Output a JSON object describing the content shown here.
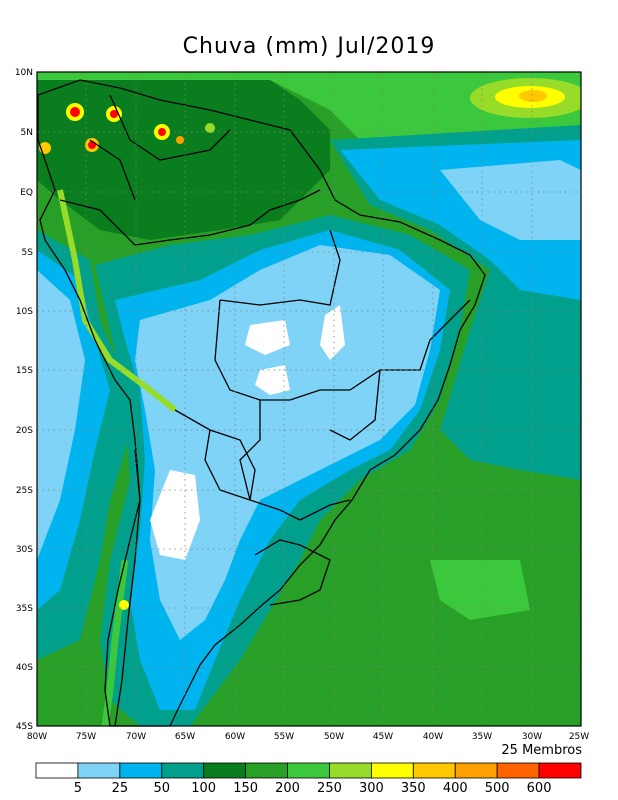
{
  "title": "Chuva (mm) Jul/2019",
  "members_label": "25 Membros",
  "lat_ticks": [
    "10N",
    "5N",
    "EQ",
    "5S",
    "10S",
    "15S",
    "20S",
    "25S",
    "30S",
    "35S",
    "40S",
    "45S"
  ],
  "lon_ticks": [
    "80W",
    "75W",
    "70W",
    "65W",
    "60W",
    "55W",
    "50W",
    "45W",
    "40W",
    "35W",
    "30W",
    "25W"
  ],
  "legend": {
    "labels": [
      "5",
      "25",
      "50",
      "100",
      "150",
      "200",
      "250",
      "300",
      "350",
      "400",
      "500",
      "600"
    ],
    "colors": [
      "#ffffff",
      "#7ed3f7",
      "#00b4f0",
      "#00a08c",
      "#0a7d1e",
      "#28a028",
      "#3cc83c",
      "#96dc28",
      "#ffff00",
      "#ffc800",
      "#ffa000",
      "#ff6400",
      "#ff0000"
    ]
  },
  "regions": [
    {
      "name": "southern-ocean",
      "color": "#28a028"
    },
    {
      "name": "atlantic-band",
      "color": "#00a08c"
    },
    {
      "name": "continent-interior",
      "color": "#7ed3f7"
    },
    {
      "name": "dry-core",
      "color": "#ffffff"
    }
  ]
}
